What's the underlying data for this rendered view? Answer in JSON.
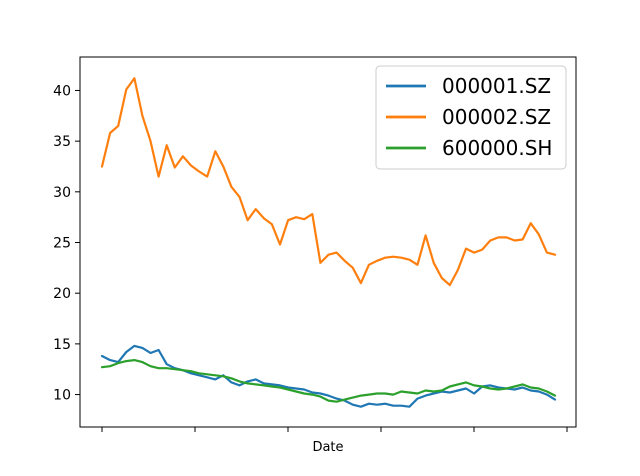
{
  "chart_data": {
    "type": "line",
    "title": "",
    "xlabel": "Date",
    "ylabel": "",
    "ylim": [
      6.8,
      43.3
    ],
    "yticks": [
      10,
      15,
      20,
      25,
      30,
      35,
      40
    ],
    "grid": false,
    "legend_position": "top-right",
    "x_tick_count": 6,
    "series": [
      {
        "name": "000001.SZ",
        "color": "#1f77b4",
        "values": [
          13.8,
          13.4,
          13.2,
          14.2,
          14.8,
          14.6,
          14.1,
          14.4,
          13.0,
          12.6,
          12.4,
          12.1,
          11.9,
          11.7,
          11.5,
          11.9,
          11.2,
          10.9,
          11.3,
          11.5,
          11.1,
          11.0,
          10.9,
          10.7,
          10.6,
          10.5,
          10.2,
          10.1,
          9.9,
          9.6,
          9.4,
          9.0,
          8.8,
          9.1,
          9.0,
          9.1,
          8.9,
          8.9,
          8.8,
          9.6,
          9.9,
          10.1,
          10.3,
          10.2,
          10.4,
          10.6,
          10.1,
          10.8,
          10.9,
          10.7,
          10.6,
          10.5,
          10.7,
          10.4,
          10.3,
          10.0,
          9.5
        ]
      },
      {
        "name": "000002.SZ",
        "color": "#ff7f0e",
        "values": [
          32.5,
          35.8,
          36.5,
          40.1,
          41.2,
          37.5,
          35.0,
          31.5,
          34.6,
          32.4,
          33.5,
          32.6,
          32.0,
          31.5,
          34.0,
          32.5,
          30.5,
          29.5,
          27.2,
          28.3,
          27.4,
          26.8,
          24.8,
          27.2,
          27.5,
          27.3,
          27.8,
          23.0,
          23.8,
          24.0,
          23.2,
          22.5,
          21.0,
          22.8,
          23.2,
          23.5,
          23.6,
          23.5,
          23.3,
          22.8,
          25.7,
          23.0,
          21.5,
          20.8,
          22.3,
          24.4,
          24.0,
          24.3,
          25.2,
          25.5,
          25.5,
          25.2,
          25.3,
          26.9,
          25.8,
          24.0,
          23.8
        ]
      },
      {
        "name": "600000.SH",
        "color": "#2ca02c",
        "values": [
          12.7,
          12.8,
          13.1,
          13.3,
          13.4,
          13.2,
          12.8,
          12.6,
          12.6,
          12.5,
          12.4,
          12.3,
          12.1,
          12.0,
          11.9,
          11.8,
          11.6,
          11.3,
          11.1,
          11.0,
          10.9,
          10.8,
          10.7,
          10.5,
          10.3,
          10.1,
          10.0,
          9.8,
          9.4,
          9.3,
          9.5,
          9.7,
          9.9,
          10.0,
          10.1,
          10.1,
          10.0,
          10.3,
          10.2,
          10.1,
          10.4,
          10.3,
          10.4,
          10.8,
          11.0,
          11.2,
          10.9,
          10.8,
          10.6,
          10.5,
          10.6,
          10.8,
          11.0,
          10.7,
          10.6,
          10.3,
          9.9
        ]
      }
    ]
  }
}
